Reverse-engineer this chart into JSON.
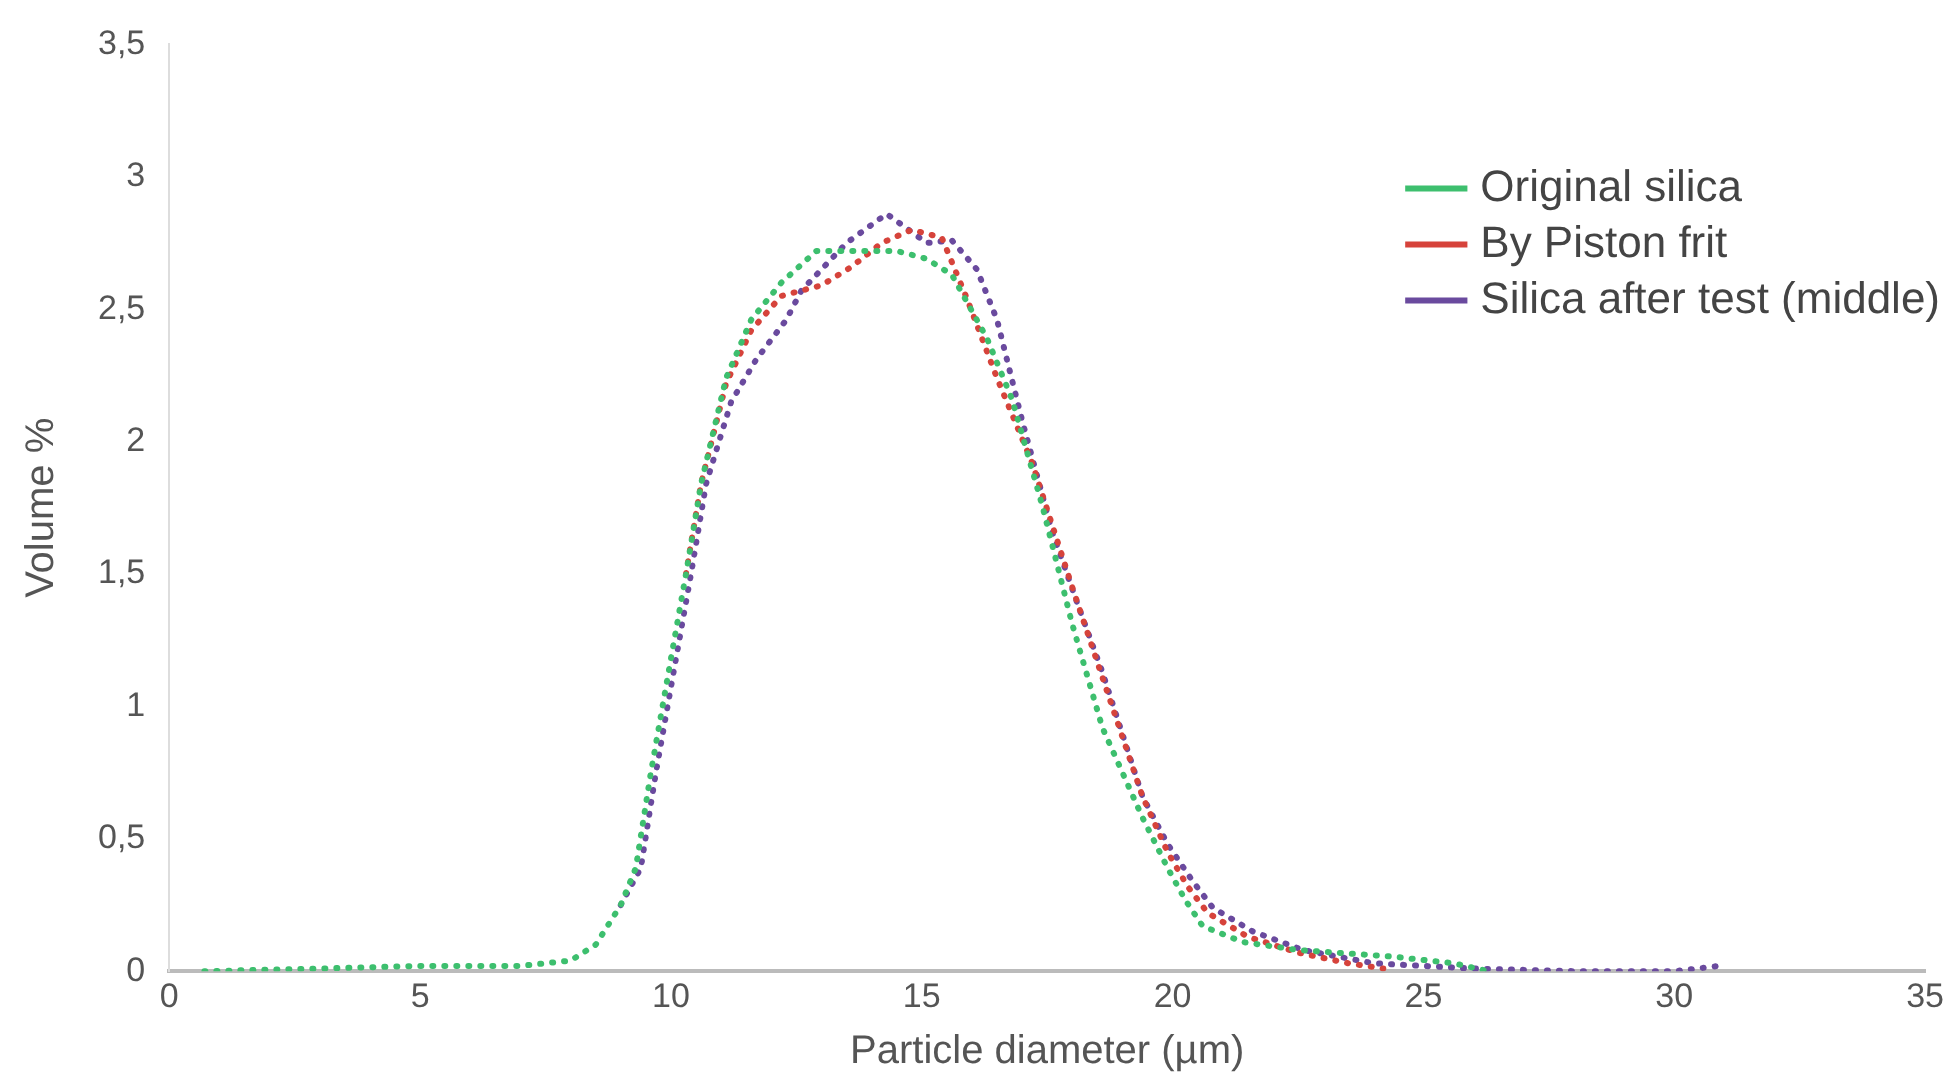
{
  "chart_data": {
    "type": "line",
    "xlabel": "Particle diameter (µm)",
    "ylabel": "Volume %",
    "xlim": [
      0,
      35
    ],
    "xticks": [
      0,
      5,
      10,
      15,
      20,
      25,
      30,
      35
    ],
    "ylim": [
      0,
      3.5
    ],
    "yticks": [
      0,
      {
        "value": 0.5,
        "label": "0,5"
      },
      1,
      {
        "value": 1.5,
        "label": "1,5"
      },
      2,
      {
        "value": 2.5,
        "label": "2,5"
      },
      3,
      {
        "value": 3.5,
        "label": "3,5"
      }
    ],
    "grid": false,
    "legend": "top right",
    "marker": "none",
    "line_style": "dotted",
    "series": [
      {
        "name": "Original silica",
        "color": "#3dbf6e",
        "x": [
          0.7,
          3,
          5,
          7,
          8,
          8.5,
          9,
          9.3,
          9.6,
          10,
          10.3,
          10.6,
          11.1,
          11.6,
          12.2,
          12.9,
          13.6,
          14.5,
          15.1,
          15.6,
          16.3,
          16.8,
          17.4,
          18,
          18.6,
          19.4,
          19.9,
          20.25,
          20.6,
          21.4,
          22.5,
          24.4,
          25.6,
          26.3
        ],
        "values": [
          0,
          0.01,
          0.02,
          0.02,
          0.04,
          0.1,
          0.25,
          0.39,
          0.75,
          1.18,
          1.5,
          1.84,
          2.24,
          2.46,
          2.6,
          2.72,
          2.72,
          2.72,
          2.69,
          2.63,
          2.39,
          2.16,
          1.76,
          1.31,
          0.92,
          0.58,
          0.39,
          0.27,
          0.17,
          0.11,
          0.08,
          0.055,
          0.03,
          0
        ]
      },
      {
        "name": "By Piston frit",
        "color": "#d6433b",
        "x": [
          10.3,
          10.6,
          11.1,
          11.6,
          12.2,
          13,
          13.6,
          14.2,
          14.8,
          15.4,
          15.9,
          16.5,
          17.2,
          18,
          18.6,
          19.4,
          19.9,
          20.3,
          20.7,
          21.5,
          22.5,
          23.5,
          24.2
        ],
        "values": [
          1.5,
          1.84,
          2.22,
          2.42,
          2.55,
          2.59,
          2.66,
          2.75,
          2.8,
          2.77,
          2.54,
          2.24,
          1.92,
          1.45,
          1.11,
          0.66,
          0.45,
          0.32,
          0.22,
          0.13,
          0.07,
          0.03,
          0.01
        ]
      },
      {
        "name": "Silica after test (middle)",
        "color": "#6a4a9e",
        "x": [
          9,
          9.4,
          9.7,
          10.1,
          10.4,
          10.7,
          11.2,
          11.7,
          12.3,
          12.6,
          13.5,
          14.3,
          15.1,
          15.6,
          16.1,
          16.5,
          17,
          17.6,
          18.1,
          18.6,
          19.4,
          19.9,
          20.4,
          20.8,
          21.6,
          22.6,
          24,
          26,
          28,
          30,
          30.9
        ],
        "values": [
          0.25,
          0.39,
          0.75,
          1.18,
          1.5,
          1.84,
          2.15,
          2.31,
          2.46,
          2.57,
          2.75,
          2.86,
          2.75,
          2.76,
          2.65,
          2.46,
          2.08,
          1.66,
          1.39,
          1.13,
          0.66,
          0.48,
          0.34,
          0.24,
          0.15,
          0.08,
          0.03,
          0.01,
          0,
          0,
          0.02
        ]
      }
    ]
  }
}
